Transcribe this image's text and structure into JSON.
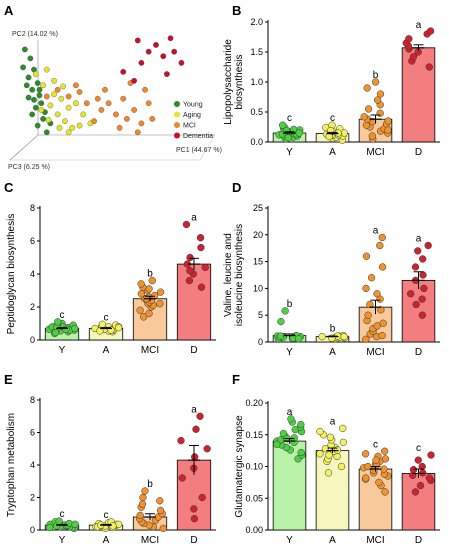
{
  "colors": {
    "Y": "#4fd043",
    "A": "#f2f25c",
    "MCI": "#f0922e",
    "D": "#cf2230",
    "barY": "#b8f2a8",
    "barA": "#f6f7bf",
    "barMCI": "#f8c99a",
    "barD": "#f27e80"
  },
  "chart_data": [
    {
      "panel": "A",
      "type": "scatter",
      "axes": {
        "pc1": "PC1 (44.67 %)",
        "pc2": "PC2 (14.02 %)",
        "pc3": "PC3 (6.25 %)"
      },
      "legend": [
        "Young",
        "Aging",
        "MCI",
        "Dementia"
      ],
      "legend_placement": "right",
      "series": [
        {
          "name": "Young",
          "color": "#2e8b2e",
          "points": [
            [
              0.06,
              0.88
            ],
            [
              0.09,
              0.8
            ],
            [
              0.05,
              0.72
            ],
            [
              0.11,
              0.7
            ],
            [
              0.08,
              0.63
            ],
            [
              0.13,
              0.58
            ],
            [
              0.1,
              0.52
            ],
            [
              0.14,
              0.47
            ],
            [
              0.08,
              0.45
            ],
            [
              0.15,
              0.4
            ],
            [
              0.12,
              0.36
            ],
            [
              0.17,
              0.32
            ],
            [
              0.1,
              0.3
            ],
            [
              0.16,
              0.26
            ],
            [
              0.2,
              0.22
            ],
            [
              0.13,
              0.2
            ],
            [
              0.18,
              0.14
            ],
            [
              0.07,
              0.56
            ],
            [
              0.11,
              0.43
            ],
            [
              0.14,
              0.52
            ]
          ]
        },
        {
          "name": "Aging",
          "color": "#e5e52a",
          "points": [
            [
              0.12,
              0.66
            ],
            [
              0.18,
              0.7
            ],
            [
              0.16,
              0.56
            ],
            [
              0.22,
              0.48
            ],
            [
              0.2,
              0.38
            ],
            [
              0.26,
              0.44
            ],
            [
              0.24,
              0.3
            ],
            [
              0.3,
              0.36
            ],
            [
              0.28,
              0.24
            ],
            [
              0.34,
              0.4
            ],
            [
              0.32,
              0.18
            ],
            [
              0.38,
              0.3
            ],
            [
              0.22,
              0.6
            ],
            [
              0.36,
              0.2
            ],
            [
              0.19,
              0.25
            ],
            [
              0.27,
              0.55
            ],
            [
              0.42,
              0.22
            ],
            [
              0.3,
              0.14
            ],
            [
              0.15,
              0.34
            ],
            [
              0.25,
              0.18
            ]
          ]
        },
        {
          "name": "MCI",
          "color": "#f0882a",
          "points": [
            [
              0.18,
              0.46
            ],
            [
              0.24,
              0.52
            ],
            [
              0.3,
              0.46
            ],
            [
              0.36,
              0.5
            ],
            [
              0.4,
              0.4
            ],
            [
              0.46,
              0.44
            ],
            [
              0.48,
              0.34
            ],
            [
              0.52,
              0.4
            ],
            [
              0.56,
              0.3
            ],
            [
              0.6,
              0.44
            ],
            [
              0.62,
              0.26
            ],
            [
              0.66,
              0.34
            ],
            [
              0.7,
              0.22
            ],
            [
              0.74,
              0.4
            ],
            [
              0.68,
              0.14
            ],
            [
              0.58,
              0.18
            ],
            [
              0.44,
              0.24
            ],
            [
              0.5,
              0.52
            ],
            [
              0.76,
              0.26
            ],
            [
              0.34,
              0.56
            ],
            [
              0.64,
              0.58
            ],
            [
              0.72,
              0.52
            ]
          ]
        },
        {
          "name": "Dementia",
          "color": "#c8102e",
          "points": [
            [
              0.68,
              0.96
            ],
            [
              0.78,
              0.92
            ],
            [
              0.86,
              0.98
            ],
            [
              0.74,
              0.86
            ],
            [
              0.82,
              0.82
            ],
            [
              0.88,
              0.86
            ],
            [
              0.92,
              0.76
            ],
            [
              0.7,
              0.76
            ],
            [
              0.6,
              0.68
            ],
            [
              0.66,
              0.6
            ],
            [
              0.84,
              0.66
            ]
          ]
        }
      ]
    },
    {
      "panel": "B",
      "type": "bar",
      "ylabel": "Lipopolysaccharide biosynthesis",
      "categories": [
        "Y",
        "A",
        "MCI",
        "D"
      ],
      "ylim": [
        0,
        2.0
      ],
      "yticks": [
        "0.0",
        "0.5",
        "1.0",
        "1.5",
        "2.0"
      ],
      "values": [
        0.15,
        0.14,
        0.38,
        1.57
      ],
      "sem": [
        0.02,
        0.02,
        0.07,
        0.05
      ],
      "significance": [
        "c",
        "c",
        "b",
        "a"
      ],
      "points": [
        [
          0.05,
          0.08,
          0.1,
          0.12,
          0.13,
          0.14,
          0.15,
          0.16,
          0.17,
          0.18,
          0.2,
          0.22,
          0.24,
          0.1,
          0.19,
          0.13,
          0.21,
          0.28,
          0.07,
          0.15
        ],
        [
          0.03,
          0.06,
          0.08,
          0.1,
          0.11,
          0.12,
          0.13,
          0.14,
          0.15,
          0.16,
          0.18,
          0.2,
          0.22,
          0.24,
          0.28,
          0.12,
          0.17,
          0.09,
          0.15,
          0.19
        ],
        [
          0.05,
          0.1,
          0.15,
          0.18,
          0.22,
          0.25,
          0.28,
          0.3,
          0.34,
          0.38,
          0.42,
          0.48,
          0.55,
          0.62,
          0.7,
          0.8,
          0.9,
          1.0,
          0.2,
          0.35
        ],
        [
          1.25,
          1.35,
          1.42,
          1.5,
          1.55,
          1.6,
          1.65,
          1.72,
          1.8,
          1.85
        ]
      ]
    },
    {
      "panel": "C",
      "type": "bar",
      "ylabel": "Peptidoglycan biosynthesis",
      "categories": [
        "Y",
        "A",
        "MCI",
        "D"
      ],
      "ylim": [
        0,
        8
      ],
      "yticks": [
        "0",
        "2",
        "4",
        "6",
        "8"
      ],
      "values": [
        0.7,
        0.7,
        2.5,
        4.6
      ],
      "sem": [
        0.05,
        0.05,
        0.15,
        0.35
      ],
      "significance": [
        "c",
        "c",
        "b",
        "a"
      ],
      "points": [
        [
          0.4,
          0.5,
          0.55,
          0.6,
          0.65,
          0.7,
          0.75,
          0.8,
          0.85,
          0.9,
          1.0,
          0.6,
          0.7,
          0.8,
          0.5,
          0.9,
          0.65,
          0.75,
          1.1,
          0.45
        ],
        [
          0.5,
          0.55,
          0.6,
          0.65,
          0.7,
          0.75,
          0.8,
          0.85,
          0.9,
          0.6,
          0.7,
          0.8,
          0.65,
          0.75,
          0.95,
          0.55
        ],
        [
          1.4,
          1.6,
          1.8,
          2.0,
          2.1,
          2.2,
          2.3,
          2.4,
          2.5,
          2.6,
          2.7,
          2.8,
          2.9,
          3.0,
          3.1,
          3.2,
          3.4,
          3.6,
          2.2,
          2.5
        ],
        [
          3.2,
          3.6,
          4.0,
          4.2,
          4.4,
          4.6,
          5.0,
          5.6,
          6.2,
          7.0
        ]
      ]
    },
    {
      "panel": "D",
      "type": "bar",
      "ylabel": "Valine, leucine and isoleucine biosynthesis",
      "categories": [
        "Y",
        "A",
        "MCI",
        "D"
      ],
      "ylim": [
        0,
        25
      ],
      "yticks": [
        "0",
        "5",
        "10",
        "15",
        "20",
        "25"
      ],
      "values": [
        1.2,
        1.0,
        6.5,
        11.5
      ],
      "sem": [
        0.3,
        0.1,
        1.3,
        1.6
      ],
      "significance": [
        "b",
        "b",
        "a",
        "a"
      ],
      "points": [
        [
          0.5,
          0.6,
          0.7,
          0.8,
          0.9,
          1.0,
          1.1,
          1.2,
          5.8,
          3.8,
          0.8,
          1.0,
          0.7,
          0.9,
          1.1,
          0.6
        ],
        [
          0.6,
          0.7,
          0.8,
          0.9,
          1.0,
          1.1,
          1.2,
          0.8,
          0.9,
          1.0,
          1.1,
          0.7
        ],
        [
          0.5,
          1.0,
          1.5,
          2.0,
          2.5,
          3.0,
          3.5,
          4.0,
          5.0,
          6.0,
          7.0,
          8.0,
          9.0,
          10.0,
          12.0,
          14.0,
          16.0,
          18.0,
          19.5,
          1.2
        ],
        [
          5.0,
          7.0,
          8.0,
          9.0,
          10.0,
          11.5,
          12.5,
          14.0,
          15.5,
          17.0,
          18.0
        ]
      ]
    },
    {
      "panel": "E",
      "type": "bar",
      "ylabel": "Tryptophan metabolism",
      "categories": [
        "Y",
        "A",
        "MCI",
        "D"
      ],
      "ylim": [
        0,
        8
      ],
      "yticks": [
        "0",
        "2",
        "4",
        "6",
        "8"
      ],
      "values": [
        0.3,
        0.3,
        0.8,
        4.3
      ],
      "sem": [
        0.04,
        0.04,
        0.2,
        0.9
      ],
      "significance": [
        "c",
        "c",
        "b",
        "a"
      ],
      "points": [
        [
          0.1,
          0.15,
          0.2,
          0.25,
          0.3,
          0.35,
          0.4,
          0.45,
          0.5,
          0.2,
          0.3,
          0.4,
          0.25,
          0.35,
          0.15,
          0.55
        ],
        [
          0.1,
          0.15,
          0.2,
          0.25,
          0.3,
          0.35,
          0.4,
          0.45,
          0.5,
          0.2,
          0.3,
          0.35,
          0.25
        ],
        [
          0.1,
          0.2,
          0.3,
          0.4,
          0.5,
          0.6,
          0.7,
          0.8,
          0.9,
          1.0,
          1.2,
          1.4,
          1.6,
          1.8,
          2.0,
          2.4
        ],
        [
          0.7,
          1.3,
          2.0,
          3.2,
          3.8,
          4.5,
          5.0,
          5.5,
          6.2,
          7.0
        ]
      ]
    },
    {
      "panel": "F",
      "type": "bar",
      "ylabel": "Glutamatergic synapse",
      "categories": [
        "Y",
        "A",
        "MCI",
        "D"
      ],
      "ylim": [
        0,
        0.2
      ],
      "yticks": [
        "0.00",
        "0.05",
        "0.10",
        "0.15",
        "0.20"
      ],
      "values": [
        0.14,
        0.125,
        0.096,
        0.089
      ],
      "sem": [
        0.004,
        0.004,
        0.004,
        0.007
      ],
      "significance": [
        "a",
        "a",
        "c",
        "c"
      ],
      "points": [
        [
          0.112,
          0.118,
          0.122,
          0.126,
          0.13,
          0.134,
          0.138,
          0.14,
          0.142,
          0.145,
          0.148,
          0.152,
          0.155,
          0.158,
          0.162,
          0.166,
          0.17,
          0.175,
          0.135,
          0.144
        ],
        [
          0.09,
          0.1,
          0.108,
          0.112,
          0.116,
          0.12,
          0.124,
          0.128,
          0.13,
          0.134,
          0.138,
          0.142,
          0.146,
          0.15,
          0.155,
          0.16,
          0.118,
          0.126
        ],
        [
          0.06,
          0.07,
          0.075,
          0.08,
          0.085,
          0.088,
          0.09,
          0.094,
          0.098,
          0.1,
          0.104,
          0.108,
          0.112,
          0.116,
          0.12,
          0.124,
          0.082,
          0.096,
          0.102,
          0.11
        ],
        [
          0.06,
          0.07,
          0.078,
          0.082,
          0.086,
          0.09,
          0.095,
          0.1,
          0.11,
          0.118
        ]
      ]
    }
  ]
}
